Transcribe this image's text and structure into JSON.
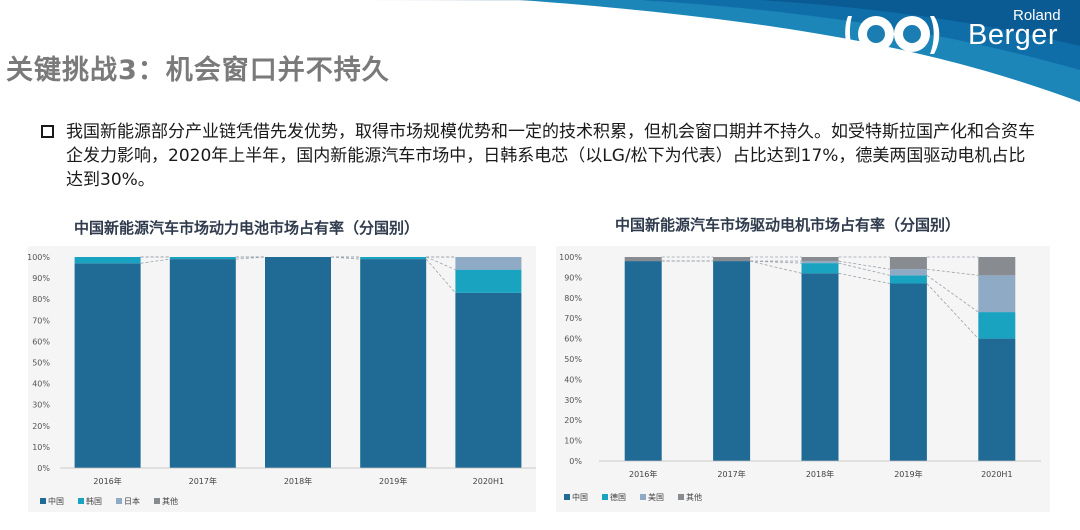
{
  "slide": {
    "title": "关键挑战3：机会窗口并不持久",
    "bullet": "我国新能源部分产业链凭借先发优势，取得市场规模优势和一定的技术积累，但机会窗口期并不持久。如受特斯拉国产化和合资车企发力影响，2020年上半年，国内新能源汽车市场中，日韩系电芯（以LG/松下为代表）占比达到17%，德美两国驱动电机占比达到30%。"
  },
  "logo": {
    "line1": "Roland",
    "line2": "Berger"
  },
  "colors": {
    "blue_dark": "#1f6b96",
    "teal": "#1aa3c0",
    "light_blue": "#8eaac4",
    "gray": "#888b90"
  },
  "chart_data": [
    {
      "type": "bar",
      "stacked": true,
      "title": "中国新能源汽车市场动力电池市场占有率（分国别）",
      "categories": [
        "2016年",
        "2017年",
        "2018年",
        "2019年",
        "2020H1"
      ],
      "series": [
        {
          "name": "中国",
          "color": "#1f6b96",
          "values": [
            97,
            99,
            100,
            99,
            83
          ]
        },
        {
          "name": "韩国",
          "color": "#1aa3c0",
          "values": [
            3,
            1,
            0,
            1,
            11
          ]
        },
        {
          "name": "日本",
          "color": "#8eaac4",
          "values": [
            0,
            0,
            0,
            0,
            6
          ]
        },
        {
          "name": "其他",
          "color": "#888b90",
          "values": [
            0,
            0,
            0,
            0,
            0
          ]
        }
      ],
      "yticks": [
        "0%",
        "10%",
        "20%",
        "30%",
        "40%",
        "50%",
        "60%",
        "70%",
        "80%",
        "90%",
        "100%"
      ],
      "ylim": [
        0,
        100
      ]
    },
    {
      "type": "bar",
      "stacked": true,
      "title": "中国新能源汽车市场驱动电机市场占有率（分国别）",
      "categories": [
        "2016年",
        "2017年",
        "2018年",
        "2019年",
        "2020H1"
      ],
      "series": [
        {
          "name": "中国",
          "color": "#1f6b96",
          "values": [
            98,
            98,
            92,
            87,
            60
          ]
        },
        {
          "name": "德国",
          "color": "#1aa3c0",
          "values": [
            0,
            0,
            5,
            4,
            13
          ]
        },
        {
          "name": "美国",
          "color": "#8eaac4",
          "values": [
            0,
            0,
            1,
            3,
            18
          ]
        },
        {
          "name": "其他",
          "color": "#888b90",
          "values": [
            2,
            2,
            2,
            6,
            9
          ]
        }
      ],
      "yticks": [
        "0%",
        "10%",
        "20%",
        "30%",
        "40%",
        "50%",
        "60%",
        "70%",
        "80%",
        "90%",
        "100%"
      ],
      "ylim": [
        0,
        100
      ]
    }
  ]
}
